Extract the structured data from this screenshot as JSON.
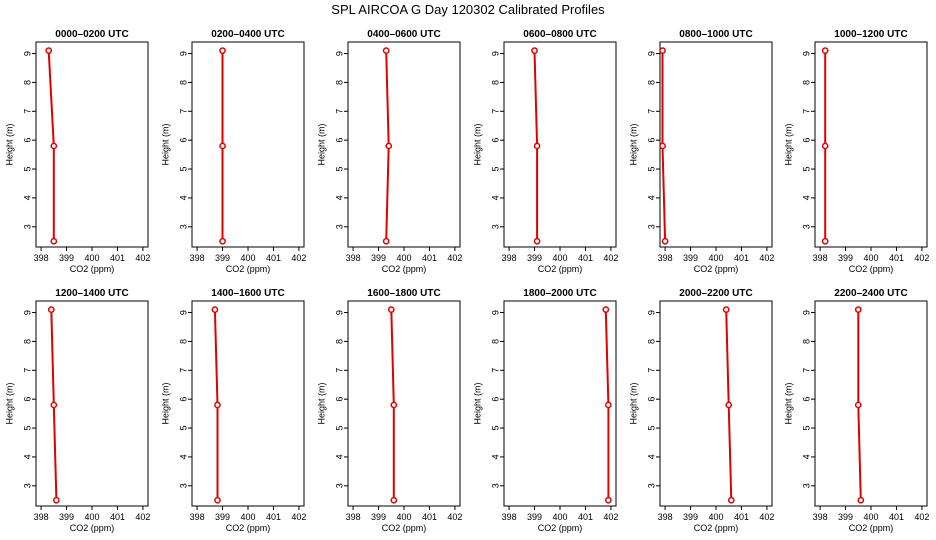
{
  "figure": {
    "title": "SPL AIRCOA G  Day 120302  Calibrated Profiles"
  },
  "colors": {
    "series": "#e00000",
    "axis": "#000000"
  },
  "chart_data": [
    {
      "type": "line",
      "title": "0000–0200 UTC",
      "xlabel": "CO2 (ppm)",
      "ylabel": "Height (m)",
      "xlim": [
        397.8,
        402.2
      ],
      "ylim": [
        2.3,
        9.4
      ],
      "xticks": [
        "398",
        "399",
        "400",
        "401",
        "402"
      ],
      "yticks": [
        "3",
        "4",
        "5",
        "6",
        "7",
        "8",
        "9"
      ],
      "series": [
        {
          "x": [
            398.3,
            398.5,
            398.5
          ],
          "y": [
            9.1,
            5.8,
            2.5
          ]
        }
      ]
    },
    {
      "type": "line",
      "title": "0200–0400 UTC",
      "xlabel": "CO2 (ppm)",
      "ylabel": "Height (m)",
      "xlim": [
        397.8,
        402.2
      ],
      "ylim": [
        2.3,
        9.4
      ],
      "xticks": [
        "398",
        "399",
        "400",
        "401",
        "402"
      ],
      "yticks": [
        "3",
        "4",
        "5",
        "6",
        "7",
        "8",
        "9"
      ],
      "series": [
        {
          "x": [
            399.0,
            399.0,
            399.0
          ],
          "y": [
            9.1,
            5.8,
            2.5
          ]
        }
      ]
    },
    {
      "type": "line",
      "title": "0400–0600 UTC",
      "xlabel": "CO2 (ppm)",
      "ylabel": "Height (m)",
      "xlim": [
        397.8,
        402.2
      ],
      "ylim": [
        2.3,
        9.4
      ],
      "xticks": [
        "398",
        "399",
        "400",
        "401",
        "402"
      ],
      "yticks": [
        "3",
        "4",
        "5",
        "6",
        "7",
        "8",
        "9"
      ],
      "series": [
        {
          "x": [
            399.3,
            399.4,
            399.3
          ],
          "y": [
            9.1,
            5.8,
            2.5
          ]
        }
      ]
    },
    {
      "type": "line",
      "title": "0600–0800 UTC",
      "xlabel": "CO2 (ppm)",
      "ylabel": "Height (m)",
      "xlim": [
        397.8,
        402.2
      ],
      "ylim": [
        2.3,
        9.4
      ],
      "xticks": [
        "398",
        "399",
        "400",
        "401",
        "402"
      ],
      "yticks": [
        "3",
        "4",
        "5",
        "6",
        "7",
        "8",
        "9"
      ],
      "series": [
        {
          "x": [
            399.0,
            399.1,
            399.1
          ],
          "y": [
            9.1,
            5.8,
            2.5
          ]
        }
      ]
    },
    {
      "type": "line",
      "title": "0800–1000 UTC",
      "xlabel": "CO2 (ppm)",
      "ylabel": "Height (m)",
      "xlim": [
        397.8,
        402.2
      ],
      "ylim": [
        2.3,
        9.4
      ],
      "xticks": [
        "398",
        "399",
        "400",
        "401",
        "402"
      ],
      "yticks": [
        "3",
        "4",
        "5",
        "6",
        "7",
        "8",
        "9"
      ],
      "series": [
        {
          "x": [
            397.9,
            397.9,
            398.0
          ],
          "y": [
            9.1,
            5.8,
            2.5
          ]
        }
      ]
    },
    {
      "type": "line",
      "title": "1000–1200 UTC",
      "xlabel": "CO2 (ppm)",
      "ylabel": "Height (m)",
      "xlim": [
        397.8,
        402.2
      ],
      "ylim": [
        2.3,
        9.4
      ],
      "xticks": [
        "398",
        "399",
        "400",
        "401",
        "402"
      ],
      "yticks": [
        "3",
        "4",
        "5",
        "6",
        "7",
        "8",
        "9"
      ],
      "series": [
        {
          "x": [
            398.2,
            398.2,
            398.2
          ],
          "y": [
            9.1,
            5.8,
            2.5
          ]
        }
      ]
    },
    {
      "type": "line",
      "title": "1200–1400 UTC",
      "xlabel": "CO2 (ppm)",
      "ylabel": "Height (m)",
      "xlim": [
        397.8,
        402.2
      ],
      "ylim": [
        2.3,
        9.4
      ],
      "xticks": [
        "398",
        "399",
        "400",
        "401",
        "402"
      ],
      "yticks": [
        "3",
        "4",
        "5",
        "6",
        "7",
        "8",
        "9"
      ],
      "series": [
        {
          "x": [
            398.4,
            398.5,
            398.6
          ],
          "y": [
            9.1,
            5.8,
            2.5
          ]
        }
      ]
    },
    {
      "type": "line",
      "title": "1400–1600 UTC",
      "xlabel": "CO2 (ppm)",
      "ylabel": "Height (m)",
      "xlim": [
        397.8,
        402.2
      ],
      "ylim": [
        2.3,
        9.4
      ],
      "xticks": [
        "398",
        "399",
        "400",
        "401",
        "402"
      ],
      "yticks": [
        "3",
        "4",
        "5",
        "6",
        "7",
        "8",
        "9"
      ],
      "series": [
        {
          "x": [
            398.7,
            398.8,
            398.8
          ],
          "y": [
            9.1,
            5.8,
            2.5
          ]
        }
      ]
    },
    {
      "type": "line",
      "title": "1600–1800 UTC",
      "xlabel": "CO2 (ppm)",
      "ylabel": "Height (m)",
      "xlim": [
        397.8,
        402.2
      ],
      "ylim": [
        2.3,
        9.4
      ],
      "xticks": [
        "398",
        "399",
        "400",
        "401",
        "402"
      ],
      "yticks": [
        "3",
        "4",
        "5",
        "6",
        "7",
        "8",
        "9"
      ],
      "series": [
        {
          "x": [
            399.5,
            399.6,
            399.6
          ],
          "y": [
            9.1,
            5.8,
            2.5
          ]
        }
      ]
    },
    {
      "type": "line",
      "title": "1800–2000 UTC",
      "xlabel": "CO2 (ppm)",
      "ylabel": "Height (m)",
      "xlim": [
        397.8,
        402.2
      ],
      "ylim": [
        2.3,
        9.4
      ],
      "xticks": [
        "398",
        "399",
        "400",
        "401",
        "402"
      ],
      "yticks": [
        "3",
        "4",
        "5",
        "6",
        "7",
        "8",
        "9"
      ],
      "series": [
        {
          "x": [
            401.8,
            401.9,
            401.9
          ],
          "y": [
            9.1,
            5.8,
            2.5
          ]
        }
      ]
    },
    {
      "type": "line",
      "title": "2000–2200 UTC",
      "xlabel": "CO2 (ppm)",
      "ylabel": "Height (m)",
      "xlim": [
        397.8,
        402.2
      ],
      "ylim": [
        2.3,
        9.4
      ],
      "xticks": [
        "398",
        "399",
        "400",
        "401",
        "402"
      ],
      "yticks": [
        "3",
        "4",
        "5",
        "6",
        "7",
        "8",
        "9"
      ],
      "series": [
        {
          "x": [
            400.4,
            400.5,
            400.6
          ],
          "y": [
            9.1,
            5.8,
            2.5
          ]
        }
      ]
    },
    {
      "type": "line",
      "title": "2200–2400 UTC",
      "xlabel": "CO2 (ppm)",
      "ylabel": "Height (m)",
      "xlim": [
        397.8,
        402.2
      ],
      "ylim": [
        2.3,
        9.4
      ],
      "xticks": [
        "398",
        "399",
        "400",
        "401",
        "402"
      ],
      "yticks": [
        "3",
        "4",
        "5",
        "6",
        "7",
        "8",
        "9"
      ],
      "series": [
        {
          "x": [
            399.5,
            399.5,
            399.6
          ],
          "y": [
            9.1,
            5.8,
            2.5
          ]
        }
      ]
    }
  ]
}
